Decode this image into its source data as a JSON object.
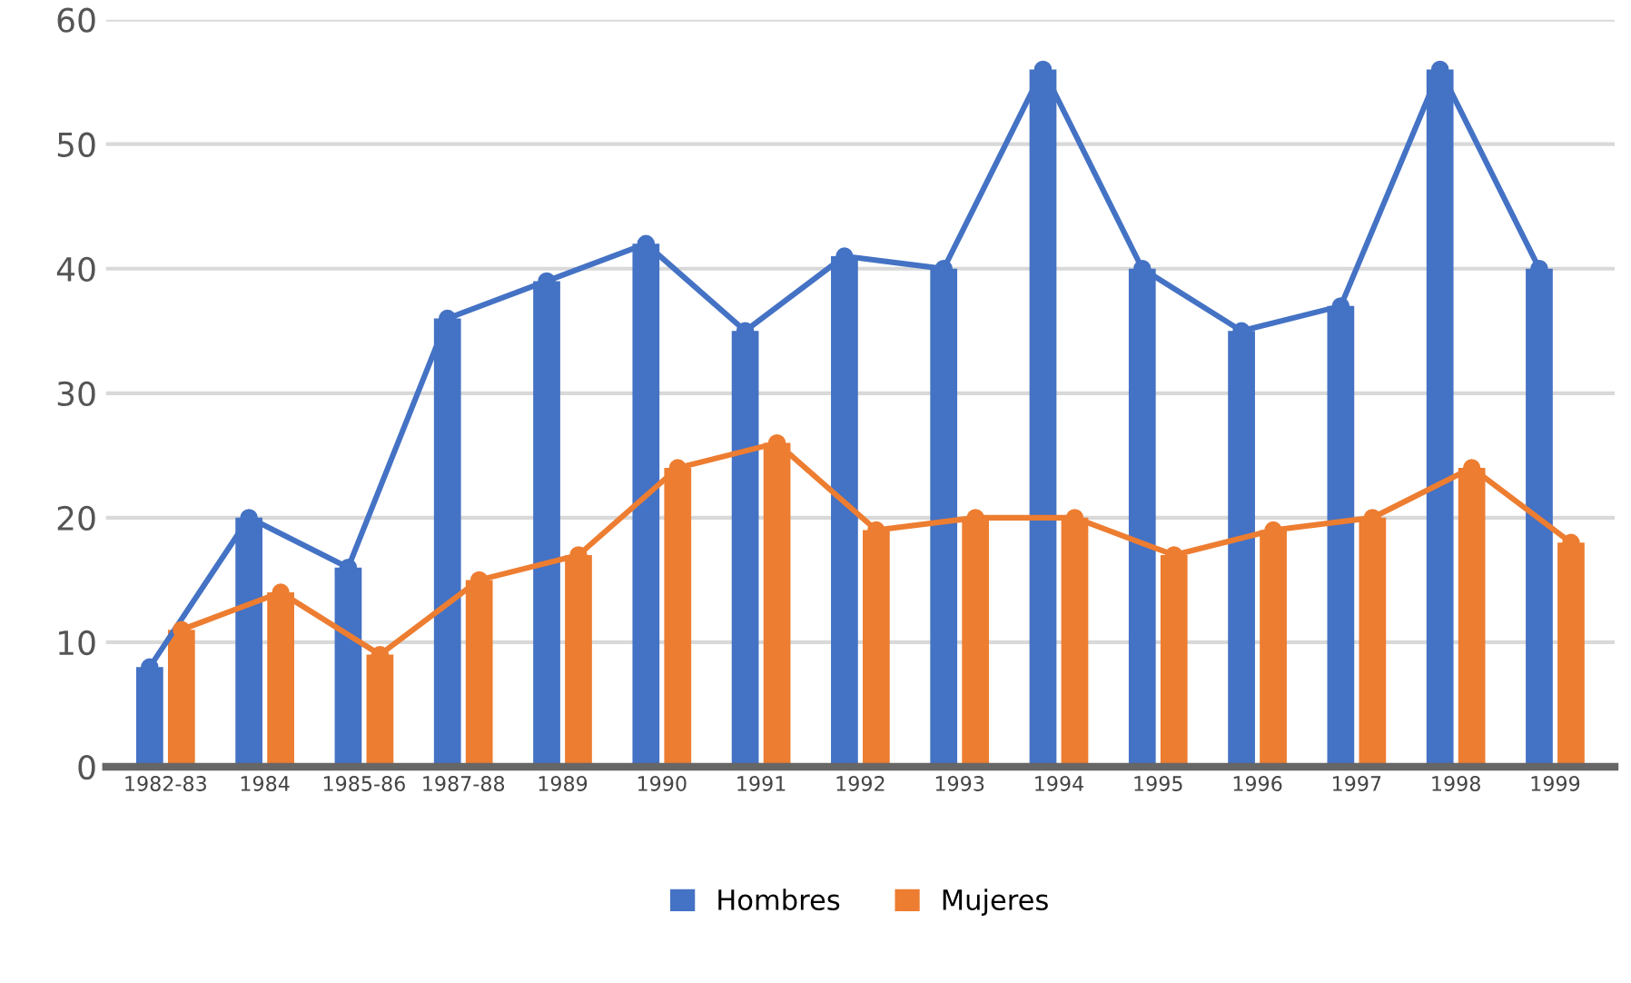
{
  "chart_data": {
    "type": "bar",
    "categories": [
      "1982-83",
      "1984",
      "1985-86",
      "1987-88",
      "1989",
      "1990",
      "1991",
      "1992",
      "1993",
      "1994",
      "1995",
      "1996",
      "1997",
      "1998",
      "1999"
    ],
    "series": [
      {
        "name": "Hombres",
        "color": "#4472c4",
        "values": [
          8,
          20,
          16,
          36,
          39,
          42,
          35,
          41,
          40,
          56,
          40,
          35,
          37,
          56,
          40
        ]
      },
      {
        "name": "Mujeres",
        "color": "#ed7d31",
        "values": [
          11,
          14,
          9,
          15,
          17,
          24,
          26,
          19,
          20,
          20,
          17,
          19,
          20,
          24,
          18
        ]
      },
      {
        "type": "line",
        "color": "#4472c4",
        "values": [
          8,
          20,
          16,
          36,
          39,
          42,
          35,
          41,
          40,
          56,
          40,
          35,
          37,
          56,
          40
        ]
      },
      {
        "type": "line",
        "color": "#ed7d31",
        "values": [
          11,
          14,
          9,
          15,
          17,
          24,
          26,
          19,
          20,
          20,
          17,
          19,
          20,
          24,
          18
        ]
      }
    ],
    "ylim": [
      0,
      60
    ],
    "yticks": [
      0,
      10,
      20,
      30,
      40,
      50,
      60
    ],
    "grid": "y",
    "legend": "bottom",
    "marker": "circle",
    "line_style": "solid"
  }
}
